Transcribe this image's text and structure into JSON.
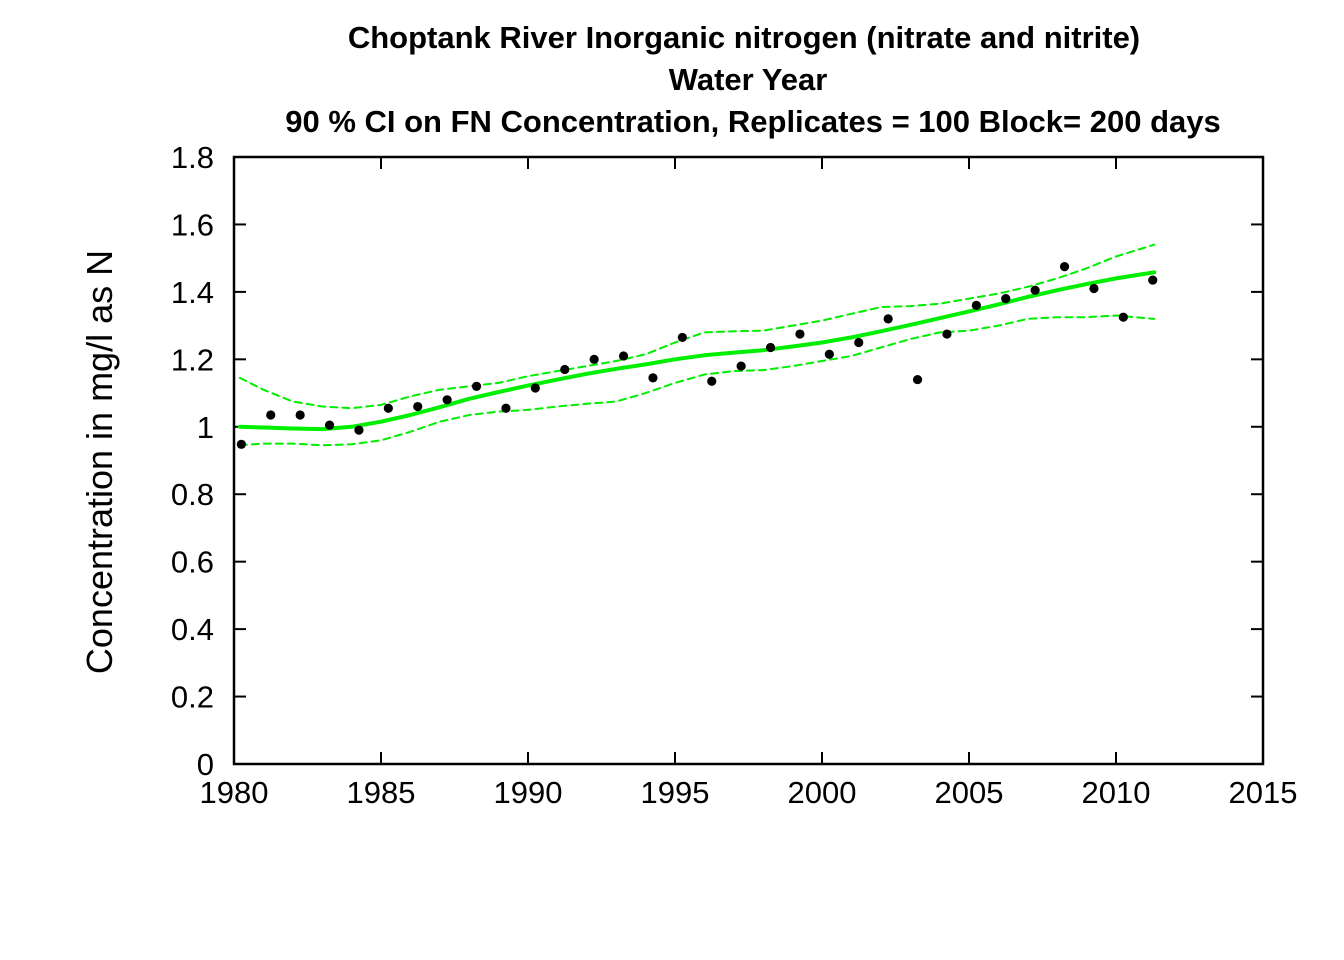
{
  "chart_data": {
    "type": "scatter",
    "title_lines": [
      "Choptank River   Inorganic nitrogen (nitrate and nitrite)",
      "Water Year",
      "90 % CI on FN Concentration, Replicates = 100 Block= 200 days"
    ],
    "xlabel": "",
    "ylabel": "Concentration in mg/l as N",
    "xlim": [
      1980,
      2015
    ],
    "ylim": [
      0,
      1.8
    ],
    "x_ticks": [
      "1980",
      "1985",
      "1990",
      "1995",
      "2000",
      "2005",
      "2010",
      "2015"
    ],
    "y_ticks": [
      "0",
      "0.2",
      "0.4",
      "0.6",
      "0.8",
      "1",
      "1.2",
      "1.4",
      "1.6",
      "1.8"
    ],
    "grid": false,
    "colors": {
      "trend": "#00ee00",
      "ci": "#00ee00",
      "points": "#000000",
      "axes": "#000000"
    },
    "series": [
      {
        "type": "scatter",
        "x": [
          1980.25,
          1981.25,
          1982.25,
          1983.25,
          1984.25,
          1985.25,
          1986.25,
          1987.25,
          1988.25,
          1989.25,
          1990.25,
          1991.25,
          1992.25,
          1993.25,
          1994.25,
          1995.25,
          1996.25,
          1997.25,
          1998.25,
          1999.25,
          2000.25,
          2001.25,
          2002.25,
          2003.25,
          2004.25,
          2005.25,
          2006.25,
          2007.25,
          2008.25,
          2009.25,
          2010.25,
          2011.25
        ],
        "y": [
          0.948,
          1.035,
          1.035,
          1.005,
          0.99,
          1.055,
          1.06,
          1.08,
          1.12,
          1.055,
          1.115,
          1.17,
          1.2,
          1.21,
          1.145,
          1.265,
          1.135,
          1.18,
          1.235,
          1.275,
          1.215,
          1.25,
          1.32,
          1.14,
          1.275,
          1.36,
          1.38,
          1.405,
          1.475,
          1.41,
          1.325,
          1.435
        ]
      },
      {
        "type": "line",
        "style": "solid",
        "x": [
          1980.2,
          1981,
          1982,
          1983,
          1984,
          1985,
          1986,
          1987,
          1988,
          1989,
          1990,
          1991,
          1992,
          1993,
          1994,
          1995,
          1996,
          1997,
          1998,
          1999,
          2000,
          2001,
          2002,
          2003,
          2004,
          2005,
          2006,
          2007,
          2008,
          2009,
          2010,
          2011.3
        ],
        "y": [
          1.0,
          0.998,
          0.995,
          0.993,
          1.0,
          1.015,
          1.035,
          1.058,
          1.083,
          1.103,
          1.122,
          1.14,
          1.157,
          1.172,
          1.185,
          1.2,
          1.212,
          1.22,
          1.227,
          1.238,
          1.25,
          1.265,
          1.283,
          1.302,
          1.322,
          1.342,
          1.363,
          1.385,
          1.405,
          1.423,
          1.44,
          1.458
        ]
      },
      {
        "type": "line",
        "style": "dashed",
        "x": [
          1980.2,
          1981,
          1982,
          1983,
          1984,
          1985,
          1986,
          1987,
          1988,
          1989,
          1990,
          1991,
          1992,
          1993,
          1994,
          1995,
          1996,
          1997,
          1998,
          1999,
          2000,
          2001,
          2002,
          2003,
          2004,
          2005,
          2006,
          2007,
          2008,
          2009,
          2010,
          2011.3
        ],
        "y": [
          1.145,
          1.11,
          1.075,
          1.06,
          1.055,
          1.065,
          1.09,
          1.11,
          1.12,
          1.13,
          1.15,
          1.165,
          1.18,
          1.195,
          1.215,
          1.25,
          1.28,
          1.283,
          1.285,
          1.3,
          1.315,
          1.335,
          1.355,
          1.358,
          1.365,
          1.38,
          1.395,
          1.415,
          1.44,
          1.47,
          1.505,
          1.54
        ]
      },
      {
        "type": "line",
        "style": "dashed",
        "x": [
          1980.2,
          1981,
          1982,
          1983,
          1984,
          1985,
          1986,
          1987,
          1988,
          1989,
          1990,
          1991,
          1992,
          1993,
          1994,
          1995,
          1996,
          1997,
          1998,
          1999,
          2000,
          2001,
          2002,
          2003,
          2004,
          2005,
          2006,
          2007,
          2008,
          2009,
          2010,
          2011.3
        ],
        "y": [
          0.945,
          0.95,
          0.95,
          0.945,
          0.948,
          0.96,
          0.985,
          1.015,
          1.035,
          1.045,
          1.05,
          1.06,
          1.068,
          1.075,
          1.1,
          1.13,
          1.155,
          1.165,
          1.168,
          1.18,
          1.195,
          1.21,
          1.235,
          1.26,
          1.28,
          1.285,
          1.3,
          1.32,
          1.325,
          1.325,
          1.33,
          1.32
        ]
      }
    ]
  }
}
